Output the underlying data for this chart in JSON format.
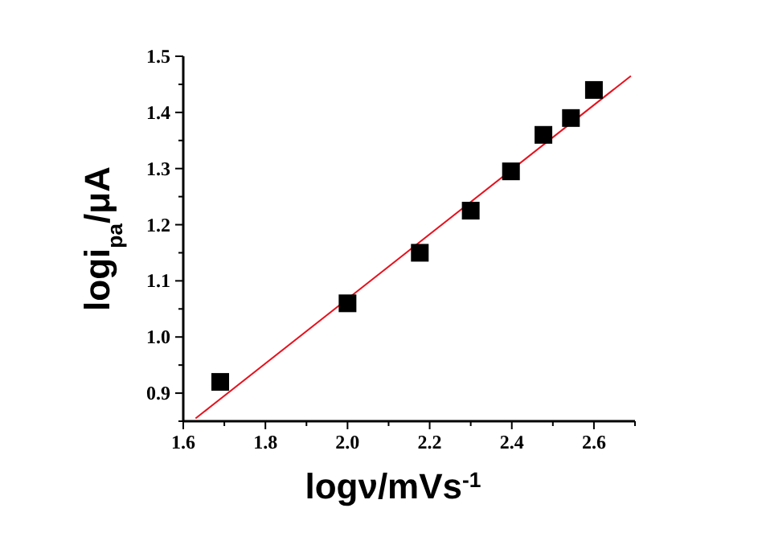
{
  "chart_data": {
    "type": "scatter",
    "xlabel": "logν/mVs$^{-1}$",
    "ylabel": "logi$_{pa}$/μA",
    "xlim": [
      1.6,
      2.7
    ],
    "ylim": [
      0.85,
      1.5
    ],
    "xticks": [
      1.6,
      {
        "value": 1.7,
        "label": null
      },
      1.8,
      {
        "value": 1.9,
        "label": null
      },
      {
        "value": 2,
        "label": "2.0"
      },
      {
        "value": 2.1,
        "label": null
      },
      2.2,
      {
        "value": 2.3,
        "label": null
      },
      2.4,
      {
        "value": 2.5,
        "label": null
      },
      2.6,
      {
        "value": 2.7,
        "label": null
      }
    ],
    "yticks": [
      {
        "value": 0.85,
        "label": null
      },
      0.9,
      {
        "value": 0.95,
        "label": null
      },
      {
        "value": 1,
        "label": "1.0"
      },
      {
        "value": 1.05,
        "label": null
      },
      1.1,
      {
        "value": 1.15,
        "label": null
      },
      1.2,
      {
        "value": 1.25,
        "label": null
      },
      1.3,
      {
        "value": 1.35,
        "label": null
      },
      1.4,
      {
        "value": 1.45,
        "label": null
      },
      1.5
    ],
    "grid": false,
    "series": [
      {
        "color": "#000000",
        "marker": "square",
        "x": [
          1.69,
          2.0,
          2.176,
          2.3,
          2.398,
          2.477,
          2.544,
          2.6
        ],
        "values": [
          0.92,
          1.06,
          1.15,
          1.225,
          1.295,
          1.36,
          1.39,
          1.44
        ]
      },
      {
        "type": "line",
        "marker": "none",
        "color": "#e8101c",
        "x": [
          1.63,
          2.69
        ],
        "values": [
          0.855,
          1.465
        ]
      }
    ]
  }
}
